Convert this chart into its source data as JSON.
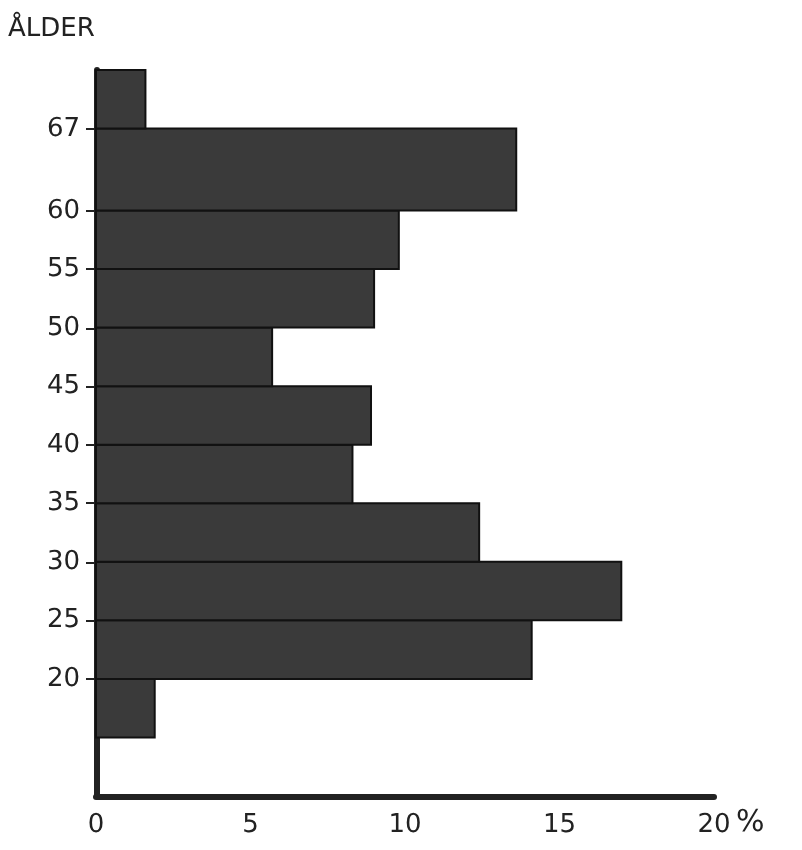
{
  "chart_data": {
    "type": "histogram",
    "orientation": "horizontal",
    "ylabel": "ÅLDER",
    "xlabel": "%",
    "bins": [
      15,
      20,
      25,
      30,
      35,
      40,
      45,
      50,
      55,
      60,
      67,
      72
    ],
    "values": [
      1.9,
      14.1,
      17.0,
      12.4,
      8.3,
      8.9,
      5.7,
      9.0,
      9.8,
      13.6,
      1.6
    ],
    "color": "#3a3a3a",
    "xlim": [
      0,
      20
    ],
    "xticks": [
      0,
      5,
      10,
      15,
      20
    ],
    "ylim": [
      10,
      72
    ],
    "yticks": [
      20,
      25,
      30,
      35,
      40,
      45,
      50,
      55,
      60,
      67
    ],
    "grid": false
  }
}
